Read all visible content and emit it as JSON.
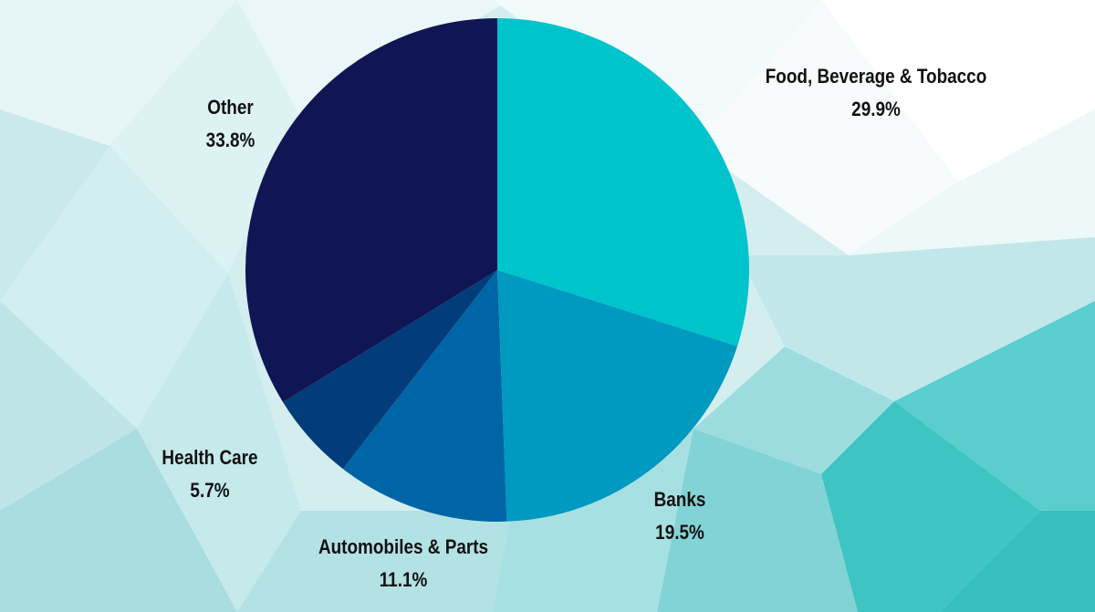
{
  "chart_data": {
    "type": "pie",
    "title": "",
    "slices": [
      {
        "label": "Food, Beverage & Tobacco",
        "value": 29.9,
        "value_label": "29.9%",
        "color": "#00c4cc"
      },
      {
        "label": "Banks",
        "value": 19.5,
        "value_label": "19.5%",
        "color": "#0099c0"
      },
      {
        "label": "Automobiles & Parts",
        "value": 11.1,
        "value_label": "11.1%",
        "color": "#0065a6"
      },
      {
        "label": "Health Care",
        "value": 5.7,
        "value_label": "5.7%",
        "color": "#023c7a"
      },
      {
        "label": "Other",
        "value": 33.8,
        "value_label": "33.8%",
        "color": "#101654"
      }
    ],
    "start_angle": "12 o'clock",
    "direction": "clockwise",
    "legend": "none"
  },
  "theme": {
    "background": "light teal low-poly pattern",
    "label_color": "#111111"
  }
}
